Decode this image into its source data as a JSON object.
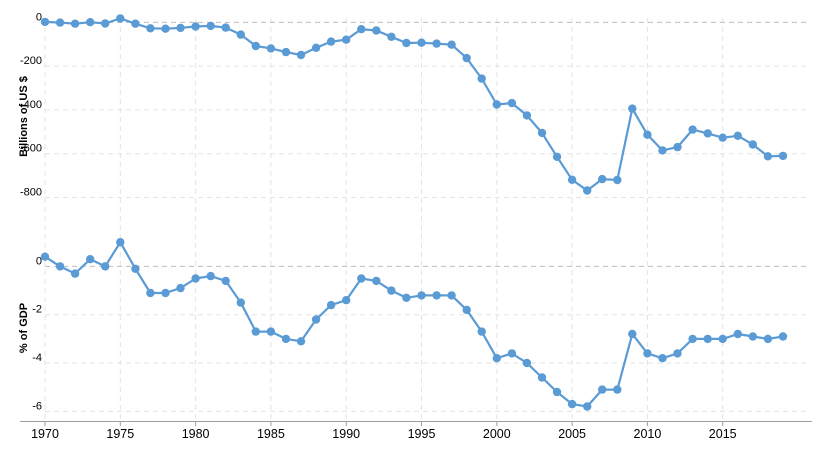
{
  "chart_data": [
    {
      "type": "line",
      "panel": "top",
      "ylabel": "Billions of US $",
      "ylim": [
        -880,
        20
      ],
      "yticks": [
        0,
        -200,
        -400,
        -600,
        -800
      ],
      "ytick_labels": [
        "0",
        "-200",
        "-400",
        "-600",
        "-800"
      ],
      "grid": true,
      "series_color": "#5b9bd5",
      "x": [
        1970,
        1971,
        1972,
        1973,
        1974,
        1975,
        1976,
        1977,
        1978,
        1979,
        1980,
        1981,
        1982,
        1983,
        1984,
        1985,
        1986,
        1987,
        1988,
        1989,
        1990,
        1991,
        1992,
        1993,
        1994,
        1995,
        1996,
        1997,
        1998,
        1999,
        2000,
        2001,
        2002,
        2003,
        2004,
        2005,
        2006,
        2007,
        2008,
        2009,
        2010,
        2011,
        2012,
        2013,
        2014,
        2015,
        2016,
        2017,
        2018,
        2019
      ],
      "values": [
        2,
        -1,
        -6,
        1,
        -5,
        18,
        -6,
        -27,
        -29,
        -25,
        -19,
        -16,
        -24,
        -56,
        -108,
        -119,
        -136,
        -149,
        -116,
        -88,
        -79,
        -31,
        -37,
        -66,
        -94,
        -93,
        -97,
        -102,
        -163,
        -257,
        -375,
        -369,
        -425,
        -505,
        -614,
        -719,
        -768,
        -716,
        -720,
        -394,
        -513,
        -585,
        -570,
        -490,
        -507,
        -527,
        -518,
        -558,
        -612,
        -610
      ]
    },
    {
      "type": "line",
      "panel": "bottom",
      "ylabel": "% of GDP",
      "ylim": [
        -6.4,
        1.3
      ],
      "yticks": [
        0,
        -2,
        -4,
        -6
      ],
      "ytick_labels": [
        "0",
        "-2",
        "-4",
        "-6"
      ],
      "grid": true,
      "series_color": "#5b9bd5",
      "x": [
        1970,
        1971,
        1972,
        1973,
        1974,
        1975,
        1976,
        1977,
        1978,
        1979,
        1980,
        1981,
        1982,
        1983,
        1984,
        1985,
        1986,
        1987,
        1988,
        1989,
        1990,
        1991,
        1992,
        1993,
        1994,
        1995,
        1996,
        1997,
        1998,
        1999,
        2000,
        2001,
        2002,
        2003,
        2004,
        2005,
        2006,
        2007,
        2008,
        2009,
        2010,
        2011,
        2012,
        2013,
        2014,
        2015,
        2016,
        2017,
        2018,
        2019
      ],
      "values": [
        0.4,
        0.0,
        -0.3,
        0.3,
        0.0,
        1.0,
        -0.1,
        -1.1,
        -1.1,
        -0.9,
        -0.5,
        -0.4,
        -0.6,
        -1.5,
        -2.7,
        -2.7,
        -3.0,
        -3.1,
        -2.2,
        -1.6,
        -1.4,
        -0.5,
        -0.6,
        -1.0,
        -1.3,
        -1.2,
        -1.2,
        -1.2,
        -1.8,
        -2.7,
        -3.8,
        -3.6,
        -4.0,
        -4.6,
        -5.2,
        -5.7,
        -5.8,
        -5.1,
        -5.1,
        -2.8,
        -3.6,
        -3.8,
        -3.6,
        -3.0,
        -3.0,
        -3.0,
        -2.8,
        -2.9,
        -3.0,
        -2.9
      ]
    }
  ],
  "x_axis": {
    "ticks": [
      1970,
      1975,
      1980,
      1985,
      1990,
      1995,
      2000,
      2005,
      2010,
      2015
    ],
    "labels": [
      "1970",
      "1975",
      "1980",
      "1985",
      "1990",
      "1995",
      "2000",
      "2005",
      "2010",
      "2015"
    ],
    "range": [
      1970,
      2019.8
    ]
  }
}
